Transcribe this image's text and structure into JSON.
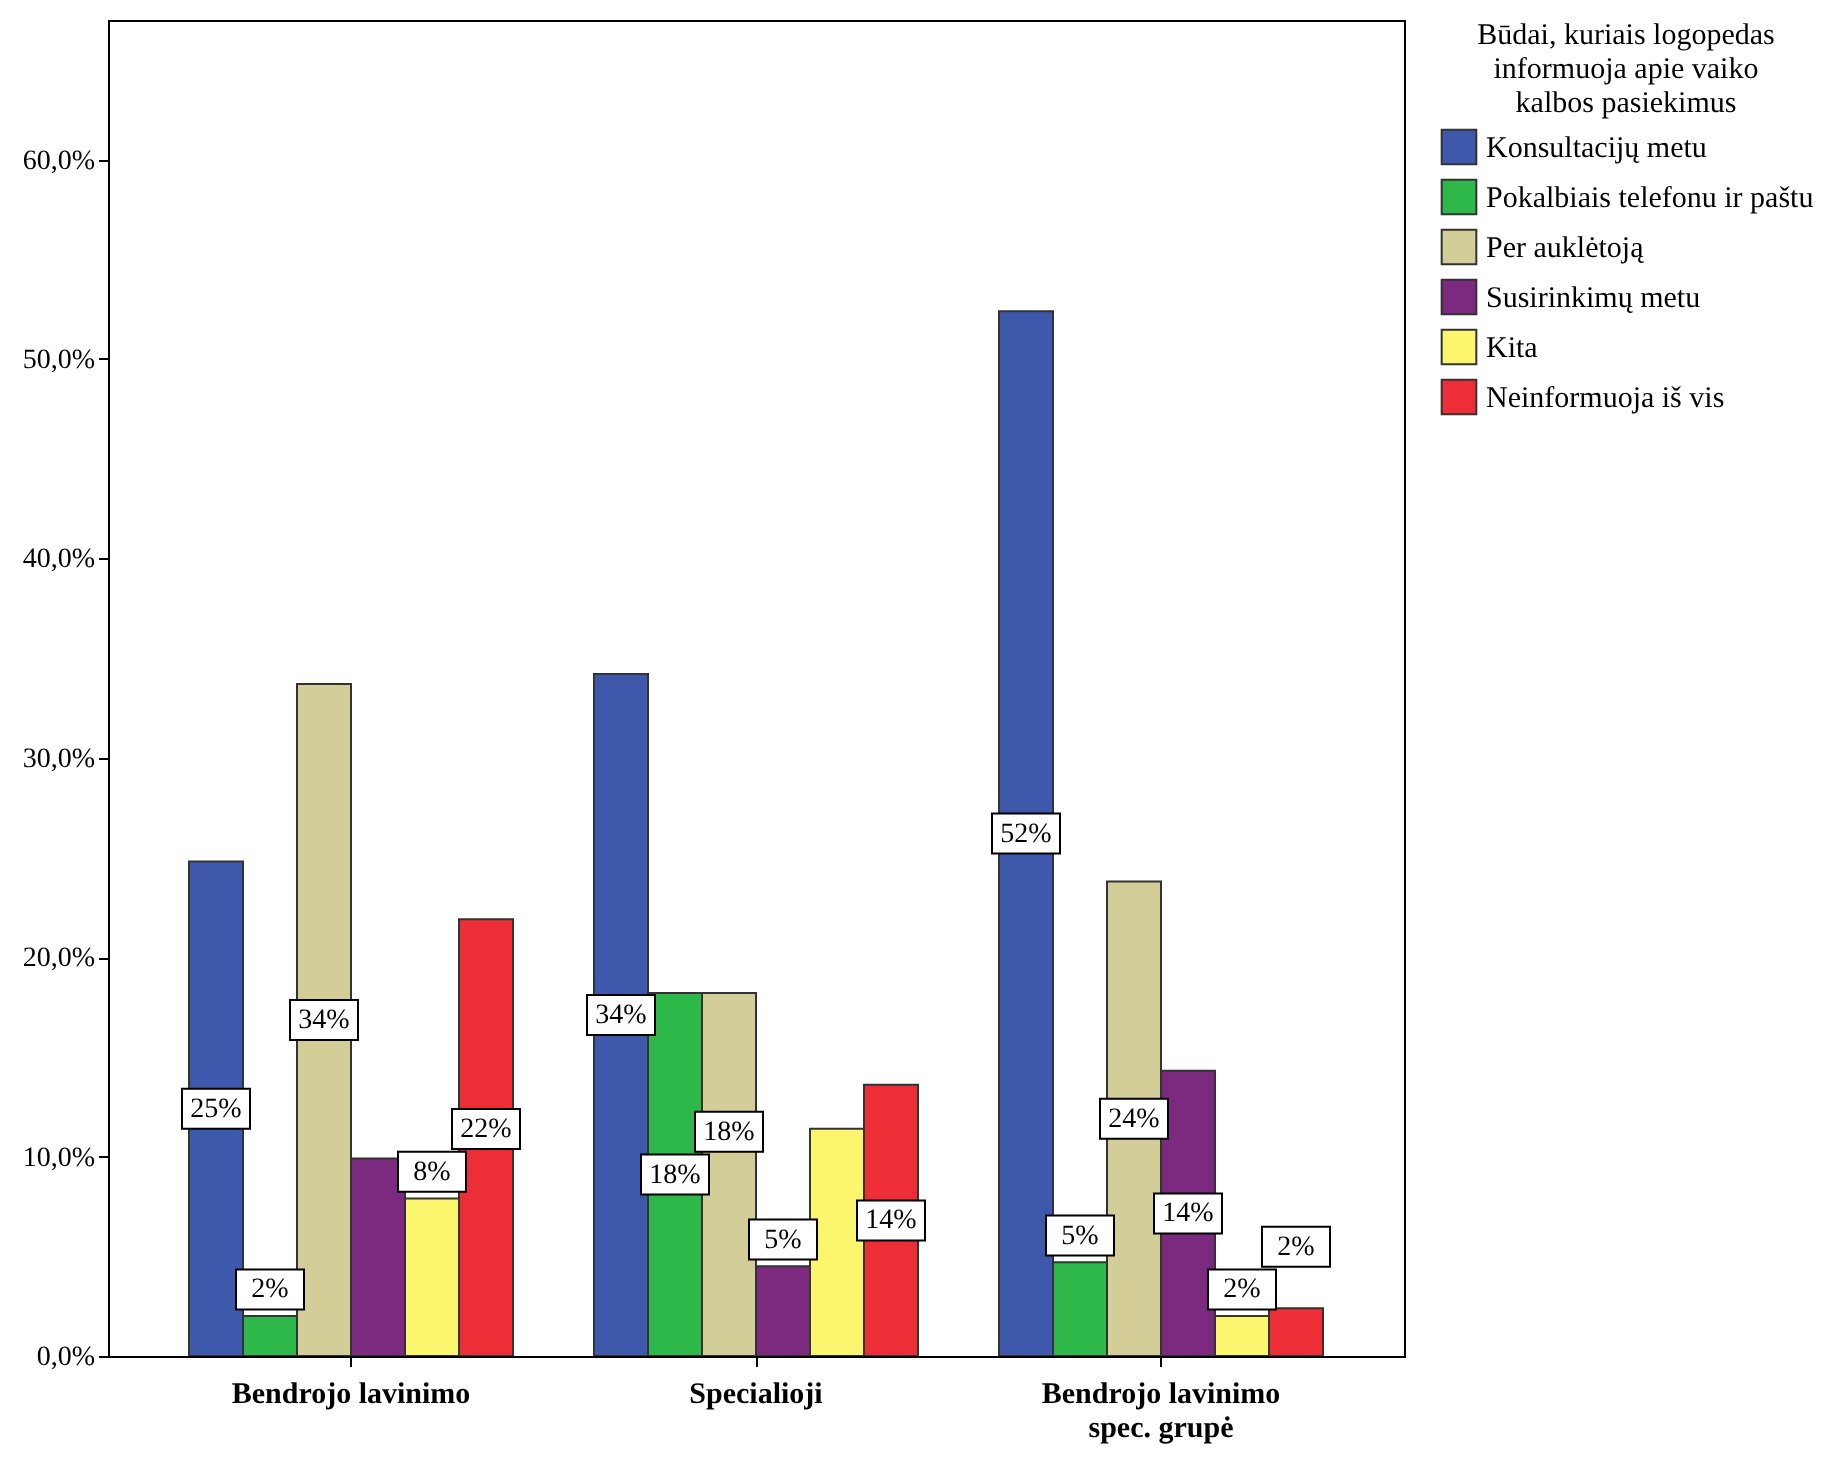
{
  "chart_data": {
    "type": "bar",
    "categories": [
      "Bendrojo lavinimo",
      "Specialioji",
      "Bendrojo lavinimo spec. grupė"
    ],
    "legend_title": "Būdai, kuriais logopedas informuoja apie vaiko kalbos pasiekimus",
    "series": [
      {
        "name": "Konsultacijų metu",
        "color": "#3e58ac",
        "values": [
          24.8,
          34.2,
          52.4
        ],
        "value_labels": [
          "25%",
          "34%",
          "52%"
        ]
      },
      {
        "name": "Pokalbiais telefonu ir paštu",
        "color": "#2eb84a",
        "values": [
          2.0,
          18.2,
          4.7
        ],
        "value_labels": [
          "2%",
          "18%",
          "5%"
        ]
      },
      {
        "name": "Per auklėtoją",
        "color": "#d3ce97",
        "values": [
          33.7,
          18.2,
          23.8
        ],
        "value_labels": [
          "34%",
          "18%",
          "24%"
        ]
      },
      {
        "name": "Susirinkimų metu",
        "color": "#7b2a7f",
        "values": [
          9.9,
          4.5,
          14.3
        ],
        "value_labels": [
          null,
          "5%",
          "14%"
        ]
      },
      {
        "name": "Kita",
        "color": "#fbf66e",
        "values": [
          7.9,
          11.4,
          2.0
        ],
        "value_labels": [
          "8%",
          null,
          "2%"
        ]
      },
      {
        "name": "Neinformuoja iš vis",
        "color": "#ee2e36",
        "values": [
          21.9,
          13.6,
          2.4
        ],
        "value_labels": [
          "22%",
          "14%",
          "2%"
        ]
      }
    ],
    "ylim": [
      0,
      67
    ],
    "yticks": [
      {
        "value": 0,
        "label": "0,0%"
      },
      {
        "value": 10,
        "label": "10,0%"
      },
      {
        "value": 20,
        "label": "20,0%"
      },
      {
        "value": 30,
        "label": "30,0%"
      },
      {
        "value": 40,
        "label": "40,0%"
      },
      {
        "value": 50,
        "label": "50,0%"
      },
      {
        "value": 60,
        "label": "60,0%"
      }
    ],
    "grid": false,
    "legend": "right"
  }
}
